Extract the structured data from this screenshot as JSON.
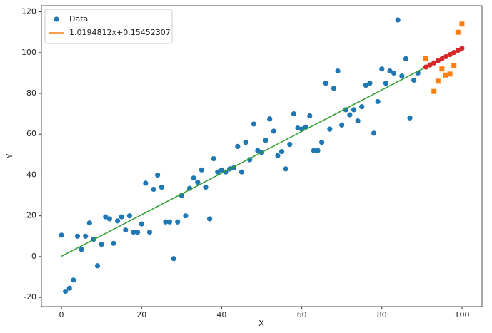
{
  "chart_data": {
    "type": "scatter",
    "x_label": "X",
    "y_label": "Y",
    "xlim": [
      -5,
      105
    ],
    "ylim": [
      -24.5,
      123
    ],
    "xticks": [
      0,
      20,
      40,
      60,
      80,
      100
    ],
    "yticks": [
      -20,
      0,
      20,
      40,
      60,
      80,
      100,
      120
    ],
    "grid": false,
    "legend_position": "upper left",
    "series": [
      {
        "name": "Data",
        "kind": "scatter",
        "marker": "circle",
        "color": "#1f77b4",
        "x": [
          0,
          1,
          2,
          3,
          4,
          5,
          6,
          7,
          8,
          9,
          10,
          11,
          12,
          13,
          14,
          15,
          16,
          17,
          18,
          19,
          20,
          21,
          22,
          23,
          24,
          25,
          26,
          27,
          28,
          29,
          30,
          31,
          32,
          33,
          34,
          35,
          36,
          37,
          38,
          39,
          40,
          41,
          42,
          43,
          44,
          45,
          46,
          47,
          48,
          49,
          50,
          51,
          52,
          53,
          54,
          55,
          56,
          57,
          58,
          59,
          60,
          61,
          62,
          63,
          64,
          65,
          66,
          67,
          68,
          69,
          70,
          71,
          72,
          73,
          74,
          75,
          76,
          77,
          78,
          79,
          80,
          81,
          82,
          83,
          84,
          85,
          86,
          87,
          88,
          89
        ],
        "values": [
          10.5,
          -17,
          -15.5,
          -11.5,
          10,
          3.5,
          10,
          16.5,
          8.5,
          -4.5,
          6,
          19.5,
          18.5,
          6.5,
          17.5,
          19.5,
          13,
          20,
          12,
          12,
          16,
          36,
          12,
          33,
          40,
          34,
          17,
          17,
          -1,
          17,
          30,
          20,
          33.5,
          38.5,
          36.5,
          42.5,
          34,
          18.5,
          48,
          41.5,
          42.5,
          41.5,
          43,
          43.5,
          54,
          41.5,
          56,
          47.5,
          65,
          52,
          51,
          57,
          67.5,
          61.5,
          49.5,
          51.5,
          43,
          55,
          70,
          63,
          62.5,
          63.5,
          69,
          52,
          52,
          56,
          85,
          62.5,
          82.5,
          91,
          64.5,
          72,
          69.5,
          72,
          66.5,
          73.5,
          84,
          85,
          60.5,
          76,
          92,
          85,
          91,
          90,
          116,
          88.5,
          97,
          68,
          86.5,
          90
        ]
      },
      {
        "name": "1.0194812x+0.15452307",
        "kind": "line",
        "color": "#2ca02c",
        "legend_color": "#ff7f0e",
        "x": [
          0,
          100
        ],
        "values": [
          0.155,
          102.1
        ]
      },
      {
        "kind": "scatter",
        "marker": "square",
        "color": "#ff7f0e",
        "x": [
          91,
          93,
          94,
          95,
          96,
          97,
          98,
          99,
          100
        ],
        "values": [
          97,
          81,
          86,
          92,
          89,
          89.5,
          93.5,
          110,
          114
        ]
      },
      {
        "kind": "scatter",
        "marker": "circle",
        "color": "#d62728",
        "x": [
          91,
          92,
          93,
          94,
          95,
          96,
          97,
          98,
          99,
          100
        ],
        "values": [
          92.93,
          93.95,
          94.97,
          95.98,
          97.0,
          98.02,
          99.04,
          100.06,
          101.08,
          102.1
        ]
      }
    ]
  }
}
